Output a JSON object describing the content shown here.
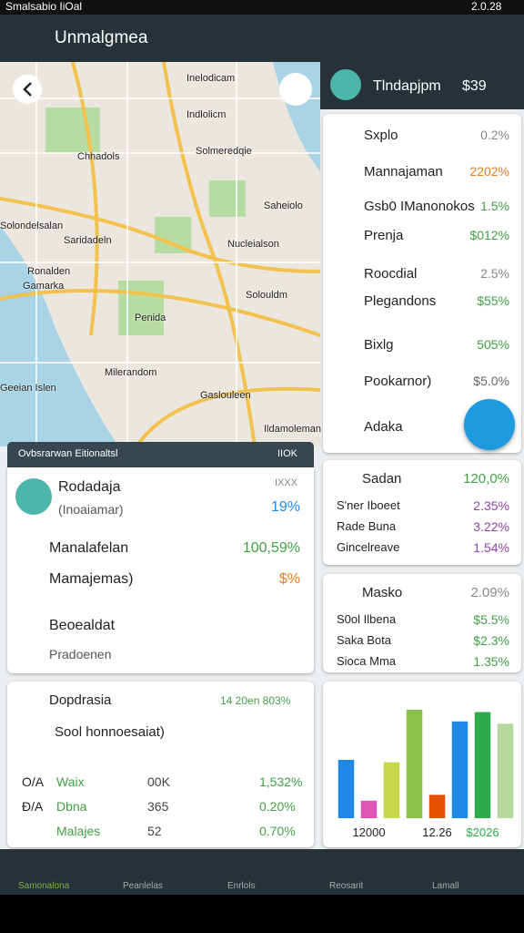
{
  "status_bar": {
    "left": "Smalsabio IiOal",
    "time": "2.0.28"
  },
  "app_bar": {
    "title": "Unmalgmea"
  },
  "map": {
    "labels": [
      "Inelodicam",
      "Indlolicm",
      "Chhadols",
      "Solmeredqie",
      "Saheiolo",
      "Solondelsalan",
      "Nucleialson",
      "Saridadeln",
      "Ronalden",
      "Solouldm",
      "Penida",
      "Milerandom",
      "Gaslouleen",
      "Ildamoleman",
      "Geeian Islen",
      "Gamarka"
    ]
  },
  "profile": {
    "name": "Tlndapjpm",
    "value": "$39"
  },
  "right_list": [
    {
      "label": "Sxplo",
      "value": "0.2%"
    },
    {
      "label": "Mannajaman",
      "value": "2202%"
    },
    {
      "label": "Gsb0 IManonokos",
      "value": "1.5%"
    },
    {
      "label": "Prenja",
      "value": "$012%"
    },
    {
      "label": "Roocdial",
      "value": "2.5%"
    },
    {
      "label": "Plegandons",
      "value": "$55%"
    },
    {
      "label": "Bixlg",
      "value": "505%"
    },
    {
      "label": "Pookarnor)",
      "value": "$5.0%"
    },
    {
      "label": "Adaka"
    }
  ],
  "card_sadan": {
    "title": "Sadan",
    "value": "120,0%",
    "rows": [
      [
        "S'ner Iboeet",
        "2.35%"
      ],
      [
        "Rade Buna",
        "3.22%"
      ],
      [
        "Gincelreave",
        "1.54%"
      ]
    ]
  },
  "card_masko": {
    "title": "Masko",
    "value": "2.09%",
    "rows": [
      [
        "S0ol Ilbena",
        "$5.5%"
      ],
      [
        "Saka Bota",
        "$2.3%"
      ],
      [
        "Sioca Mma",
        "1.35%"
      ]
    ]
  },
  "chart_data": {
    "type": "bar",
    "categories": [
      null,
      "12000",
      null,
      null,
      "12.26",
      null,
      "$2026",
      null
    ],
    "values": [
      50,
      15,
      48,
      93,
      20,
      83,
      91,
      81
    ],
    "colors": [
      "#1e88e5",
      "#e055b8",
      "#c6d84a",
      "#8bc34a",
      "#e65100",
      "#1e88e5",
      "#2eaa4a",
      "#b5d99c"
    ],
    "ylim": [
      0,
      100
    ]
  },
  "search": {
    "placeholder": "Ovbsrarwan Eitionaltsl",
    "right": "IIOK"
  },
  "card_profile": {
    "name": "Rodadaja",
    "sub": "(Inoaiamar)",
    "tag": "IXXX",
    "value": "19%",
    "items": [
      {
        "label": "Manalafelan",
        "value": "100,59%"
      },
      {
        "label": "Mamajemas)",
        "value": "$%"
      },
      {
        "label": "Beoealdat"
      },
      {
        "label": "Pradoenen"
      }
    ]
  },
  "card_dop": {
    "title": "Dopdrasia",
    "right": "14 20en 803%",
    "item": "Sool honnoesaiat)",
    "rows": [
      [
        "O/A",
        "Waix",
        "00K",
        "1,532%"
      ],
      [
        "Đ/A",
        "Dbna",
        "365",
        "0.20%"
      ],
      [
        "",
        "Malajes",
        "52",
        "0.70%"
      ]
    ]
  },
  "bottom_nav": [
    "Samonalona",
    "Peanlelas",
    "Enrlols",
    "Reosarit",
    "Lamall"
  ]
}
